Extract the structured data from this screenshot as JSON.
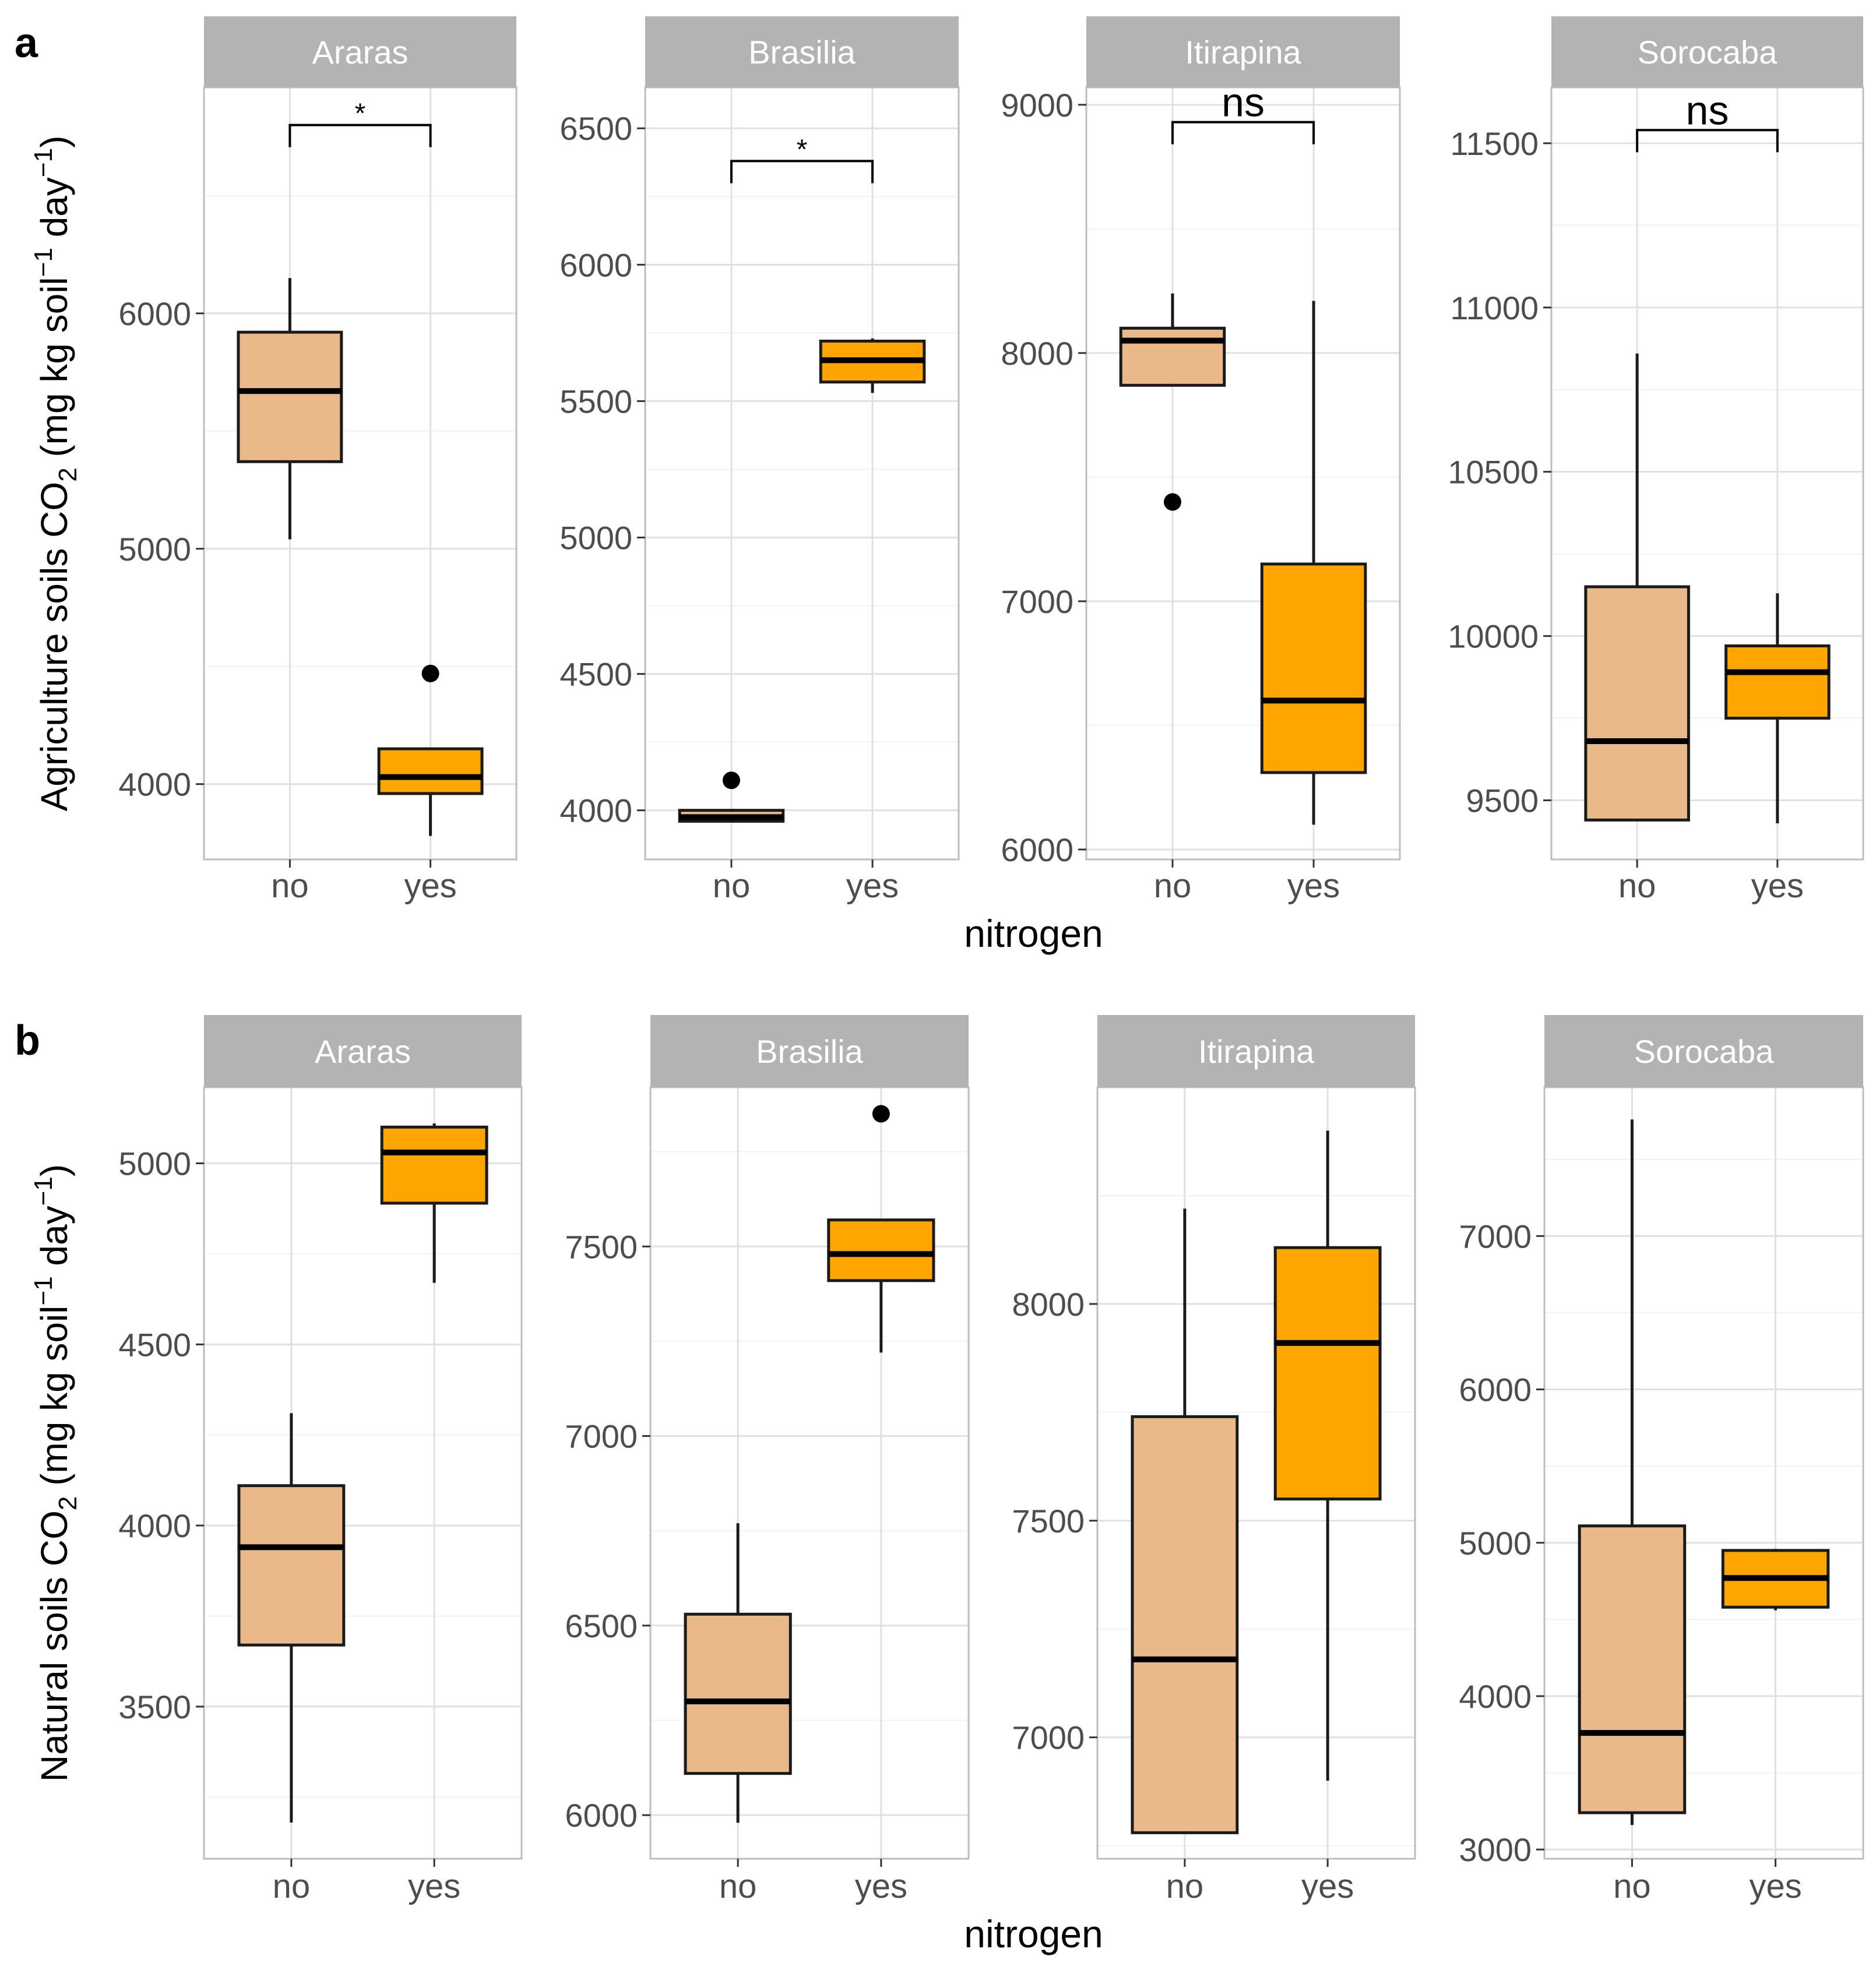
{
  "colors": {
    "no_fill": "#e9b98a",
    "yes_fill": "#ffa500",
    "strip_bg": "#b3b3b3",
    "strip_text": "#ffffff",
    "grid_major": "#e0e0e0",
    "grid_minor": "#f2f2f2",
    "panel_border": "#bdbdbd",
    "box_stroke": "#1a1a1a",
    "tick_text": "#4d4d4d"
  },
  "chart_data": [
    {
      "type": "boxplot",
      "panel_label": "a",
      "ylabel": {
        "prefix": "Agriculture soils CO",
        "sub": "2",
        "paren_open": " (mg kg soil",
        "sup1": "−1",
        "mid": " day",
        "sup2": "−1",
        "paren_close": ")"
      },
      "xlabel": "nitrogen",
      "categories": [
        "no",
        "yes"
      ],
      "facets": [
        {
          "name": "Araras",
          "ylim": [
            3680,
            6960
          ],
          "yticks": [
            4000,
            5000,
            6000
          ],
          "boxes": [
            {
              "group": "no",
              "whisker_low": 5040,
              "q1": 5370,
              "median": 5670,
              "q3": 5920,
              "whisker_high": 6150,
              "outliers": []
            },
            {
              "group": "yes",
              "whisker_low": 3780,
              "q1": 3960,
              "median": 4030,
              "q3": 4150,
              "whisker_high": 4150,
              "outliers": [
                4470
              ]
            }
          ],
          "significance": {
            "label": "*",
            "bracket_y": 6800
          }
        },
        {
          "name": "Brasilia",
          "ylim": [
            3820,
            6650
          ],
          "yticks": [
            4000,
            4500,
            5000,
            5500,
            6000,
            6500
          ],
          "boxes": [
            {
              "group": "no",
              "whisker_low": 3960,
              "q1": 3960,
              "median": 3975,
              "q3": 4000,
              "whisker_high": 4000,
              "outliers": [
                4110
              ]
            },
            {
              "group": "yes",
              "whisker_low": 5530,
              "q1": 5570,
              "median": 5650,
              "q3": 5720,
              "whisker_high": 5730,
              "outliers": []
            }
          ],
          "significance": {
            "label": "*",
            "bracket_y": 6380
          }
        },
        {
          "name": "Itirapina",
          "ylim": [
            5960,
            9070
          ],
          "yticks": [
            6000,
            7000,
            8000,
            9000
          ],
          "boxes": [
            {
              "group": "no",
              "whisker_low": 7870,
              "q1": 7870,
              "median": 8050,
              "q3": 8100,
              "whisker_high": 8240,
              "outliers": [
                7400
              ]
            },
            {
              "group": "yes",
              "whisker_low": 6100,
              "q1": 6310,
              "median": 6600,
              "q3": 7150,
              "whisker_high": 8210,
              "outliers": []
            }
          ],
          "significance": {
            "label": "ns",
            "bracket_y": 8930
          }
        },
        {
          "name": "Sorocaba",
          "ylim": [
            9320,
            11670
          ],
          "yticks": [
            9500,
            10000,
            10500,
            11000,
            11500
          ],
          "boxes": [
            {
              "group": "no",
              "whisker_low": 9440,
              "q1": 9440,
              "median": 9680,
              "q3": 10150,
              "whisker_high": 10860,
              "outliers": []
            },
            {
              "group": "yes",
              "whisker_low": 9430,
              "q1": 9750,
              "median": 9890,
              "q3": 9970,
              "whisker_high": 10130,
              "outliers": []
            }
          ],
          "significance": {
            "label": "ns",
            "bracket_y": 11540
          }
        }
      ]
    },
    {
      "type": "boxplot",
      "panel_label": "b",
      "ylabel": {
        "prefix": "Natural soils CO",
        "sub": "2",
        "paren_open": " (mg kg soil",
        "sup1": "−1",
        "mid": " day",
        "sup2": "−1",
        "paren_close": ")"
      },
      "xlabel": "nitrogen",
      "categories": [
        "no",
        "yes"
      ],
      "facets": [
        {
          "name": "Araras",
          "ylim": [
            3080,
            5210
          ],
          "yticks": [
            3500,
            4000,
            4500,
            5000
          ],
          "boxes": [
            {
              "group": "no",
              "whisker_low": 3180,
              "q1": 3670,
              "median": 3940,
              "q3": 4110,
              "whisker_high": 4310,
              "outliers": []
            },
            {
              "group": "yes",
              "whisker_low": 4670,
              "q1": 4890,
              "median": 5030,
              "q3": 5100,
              "whisker_high": 5110,
              "outliers": []
            }
          ],
          "significance": null
        },
        {
          "name": "Brasilia",
          "ylim": [
            5885,
            7920
          ],
          "yticks": [
            6000,
            6500,
            7000,
            7500
          ],
          "boxes": [
            {
              "group": "no",
              "whisker_low": 5980,
              "q1": 6110,
              "median": 6300,
              "q3": 6530,
              "whisker_high": 6770,
              "outliers": []
            },
            {
              "group": "yes",
              "whisker_low": 7220,
              "q1": 7410,
              "median": 7480,
              "q3": 7570,
              "whisker_high": 7570,
              "outliers": [
                7850
              ]
            }
          ],
          "significance": null
        },
        {
          "name": "Itirapina",
          "ylim": [
            6720,
            8500
          ],
          "yticks": [
            7000,
            7500,
            8000
          ],
          "boxes": [
            {
              "group": "no",
              "whisker_low": 6780,
              "q1": 6780,
              "median": 7180,
              "q3": 7740,
              "whisker_high": 8220,
              "outliers": []
            },
            {
              "group": "yes",
              "whisker_low": 6900,
              "q1": 7550,
              "median": 7910,
              "q3": 8130,
              "whisker_high": 8400,
              "outliers": []
            }
          ],
          "significance": null
        },
        {
          "name": "Sorocaba",
          "ylim": [
            2940,
            7970
          ],
          "yticks": [
            3000,
            4000,
            5000,
            6000,
            7000
          ],
          "boxes": [
            {
              "group": "no",
              "whisker_low": 3160,
              "q1": 3240,
              "median": 3760,
              "q3": 5110,
              "whisker_high": 7760,
              "outliers": []
            },
            {
              "group": "yes",
              "whisker_low": 4560,
              "q1": 4580,
              "median": 4770,
              "q3": 4950,
              "whisker_high": 4960,
              "outliers": []
            }
          ],
          "significance": null
        }
      ]
    }
  ]
}
